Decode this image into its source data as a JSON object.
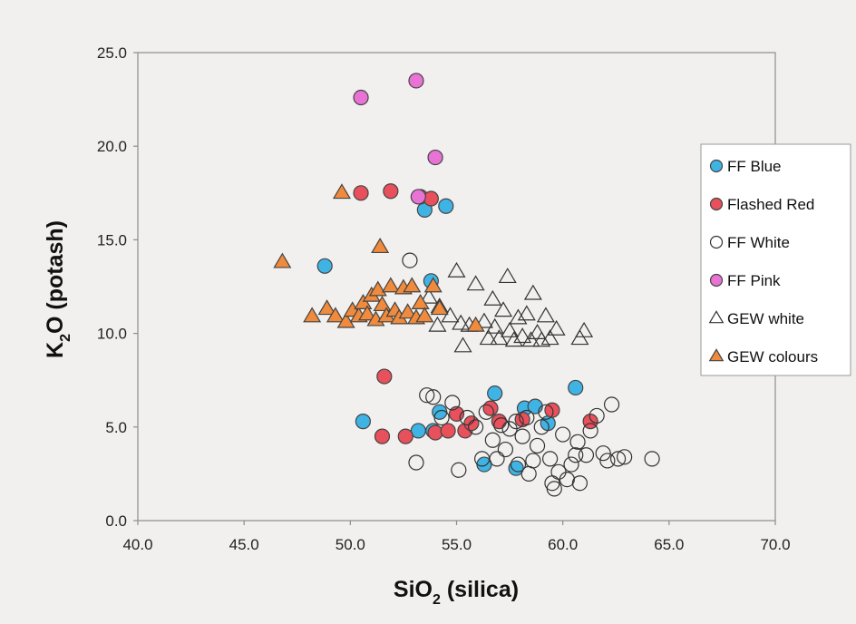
{
  "chart_data": {
    "type": "scatter",
    "title": "",
    "xlabel": {
      "main": "SiO",
      "sub": "2",
      "rest": " (silica)"
    },
    "ylabel": {
      "main": "K",
      "sub": "2",
      "rest": "O (potash)"
    },
    "xlim": [
      40,
      70
    ],
    "ylim": [
      0,
      25
    ],
    "x_ticks": [
      "40.0",
      "45.0",
      "50.0",
      "55.0",
      "60.0",
      "65.0",
      "70.0"
    ],
    "y_ticks": [
      "0.0",
      "5.0",
      "10.0",
      "15.0",
      "20.0",
      "25.0"
    ],
    "grid": false,
    "legend_position": "right",
    "series": [
      {
        "name": "FF Blue",
        "marker": "circle",
        "fill": "#3fb4e4",
        "stroke": "#444444",
        "points": [
          [
            48.8,
            13.6
          ],
          [
            50.6,
            5.3
          ],
          [
            53.2,
            4.8
          ],
          [
            53.5,
            16.6
          ],
          [
            53.8,
            12.8
          ],
          [
            53.9,
            4.8
          ],
          [
            54.2,
            5.8
          ],
          [
            54.5,
            16.8
          ],
          [
            56.3,
            3.0
          ],
          [
            56.8,
            6.8
          ],
          [
            57.8,
            2.8
          ],
          [
            58.2,
            6.0
          ],
          [
            58.7,
            6.1
          ],
          [
            59.3,
            5.2
          ],
          [
            60.6,
            7.1
          ]
        ]
      },
      {
        "name": "Flashed Red",
        "marker": "circle",
        "fill": "#e8505b",
        "stroke": "#444444",
        "points": [
          [
            50.5,
            17.5
          ],
          [
            51.5,
            4.5
          ],
          [
            51.6,
            7.7
          ],
          [
            51.9,
            17.6
          ],
          [
            52.6,
            4.5
          ],
          [
            53.3,
            17.3
          ],
          [
            53.8,
            17.2
          ],
          [
            54.0,
            4.7
          ],
          [
            54.6,
            4.8
          ],
          [
            55.0,
            5.7
          ],
          [
            55.4,
            4.8
          ],
          [
            55.7,
            5.2
          ],
          [
            56.6,
            6.0
          ],
          [
            57.0,
            5.3
          ],
          [
            58.1,
            5.4
          ],
          [
            59.5,
            5.9
          ],
          [
            61.3,
            5.3
          ]
        ]
      },
      {
        "name": "FF White",
        "marker": "circle",
        "fill": "none",
        "stroke": "#333333",
        "points": [
          [
            52.8,
            13.9
          ],
          [
            53.1,
            3.1
          ],
          [
            53.6,
            6.7
          ],
          [
            53.9,
            6.6
          ],
          [
            54.3,
            5.5
          ],
          [
            54.8,
            6.3
          ],
          [
            55.1,
            2.7
          ],
          [
            55.5,
            5.5
          ],
          [
            55.9,
            5.0
          ],
          [
            56.2,
            3.3
          ],
          [
            56.4,
            5.8
          ],
          [
            56.7,
            4.3
          ],
          [
            56.9,
            3.3
          ],
          [
            57.1,
            5.1
          ],
          [
            57.3,
            3.8
          ],
          [
            57.5,
            4.9
          ],
          [
            57.8,
            5.3
          ],
          [
            57.9,
            3.0
          ],
          [
            58.1,
            4.5
          ],
          [
            58.3,
            5.5
          ],
          [
            58.4,
            2.5
          ],
          [
            58.6,
            3.2
          ],
          [
            58.8,
            4.0
          ],
          [
            59.0,
            5.0
          ],
          [
            59.2,
            5.8
          ],
          [
            59.4,
            3.3
          ],
          [
            59.5,
            2.0
          ],
          [
            59.6,
            1.7
          ],
          [
            59.8,
            2.6
          ],
          [
            60.0,
            4.6
          ],
          [
            60.2,
            2.2
          ],
          [
            60.4,
            3.0
          ],
          [
            60.6,
            3.5
          ],
          [
            60.7,
            4.2
          ],
          [
            60.8,
            2.0
          ],
          [
            61.1,
            3.5
          ],
          [
            61.3,
            4.8
          ],
          [
            61.6,
            5.6
          ],
          [
            61.9,
            3.6
          ],
          [
            62.1,
            3.2
          ],
          [
            62.3,
            6.2
          ],
          [
            62.6,
            3.3
          ],
          [
            62.9,
            3.4
          ],
          [
            64.2,
            3.3
          ]
        ]
      },
      {
        "name": "FF Pink",
        "marker": "circle",
        "fill": "#e873d5",
        "stroke": "#444444",
        "points": [
          [
            50.5,
            22.6
          ],
          [
            53.1,
            23.5
          ],
          [
            53.2,
            17.3
          ],
          [
            54.0,
            19.4
          ]
        ]
      },
      {
        "name": "GEW white",
        "marker": "triangle",
        "fill": "none",
        "stroke": "#333333",
        "points": [
          [
            53.7,
            11.9
          ],
          [
            54.1,
            10.4
          ],
          [
            54.2,
            11.4
          ],
          [
            54.7,
            10.9
          ],
          [
            55.0,
            13.3
          ],
          [
            55.2,
            10.5
          ],
          [
            55.3,
            9.3
          ],
          [
            55.6,
            10.4
          ],
          [
            55.9,
            12.6
          ],
          [
            56.3,
            10.6
          ],
          [
            56.5,
            9.7
          ],
          [
            56.7,
            11.8
          ],
          [
            56.8,
            10.3
          ],
          [
            57.0,
            9.7
          ],
          [
            57.2,
            11.2
          ],
          [
            57.4,
            13.0
          ],
          [
            57.5,
            10.1
          ],
          [
            57.7,
            9.6
          ],
          [
            57.9,
            10.8
          ],
          [
            58.1,
            9.8
          ],
          [
            58.3,
            11.0
          ],
          [
            58.5,
            9.6
          ],
          [
            58.6,
            12.1
          ],
          [
            58.8,
            10.0
          ],
          [
            59.0,
            9.6
          ],
          [
            59.2,
            10.9
          ],
          [
            59.4,
            9.7
          ],
          [
            59.7,
            10.2
          ],
          [
            60.8,
            9.7
          ],
          [
            61.0,
            10.1
          ]
        ]
      },
      {
        "name": "GEW colours",
        "marker": "triangle",
        "fill": "#f08a3c",
        "stroke": "#444444",
        "points": [
          [
            46.8,
            13.8
          ],
          [
            48.2,
            10.9
          ],
          [
            48.9,
            11.3
          ],
          [
            49.3,
            10.9
          ],
          [
            49.6,
            17.5
          ],
          [
            49.8,
            10.6
          ],
          [
            50.1,
            11.2
          ],
          [
            50.4,
            10.9
          ],
          [
            50.6,
            11.6
          ],
          [
            50.8,
            11.0
          ],
          [
            51.0,
            12.0
          ],
          [
            51.2,
            10.7
          ],
          [
            51.3,
            12.3
          ],
          [
            51.4,
            14.6
          ],
          [
            51.5,
            11.5
          ],
          [
            51.7,
            10.9
          ],
          [
            51.9,
            12.5
          ],
          [
            52.1,
            11.2
          ],
          [
            52.3,
            10.8
          ],
          [
            52.5,
            12.4
          ],
          [
            52.7,
            11.1
          ],
          [
            52.9,
            12.5
          ],
          [
            53.1,
            10.8
          ],
          [
            53.3,
            11.6
          ],
          [
            53.5,
            10.9
          ],
          [
            53.9,
            12.5
          ],
          [
            54.2,
            11.3
          ],
          [
            55.9,
            10.4
          ]
        ]
      }
    ]
  }
}
